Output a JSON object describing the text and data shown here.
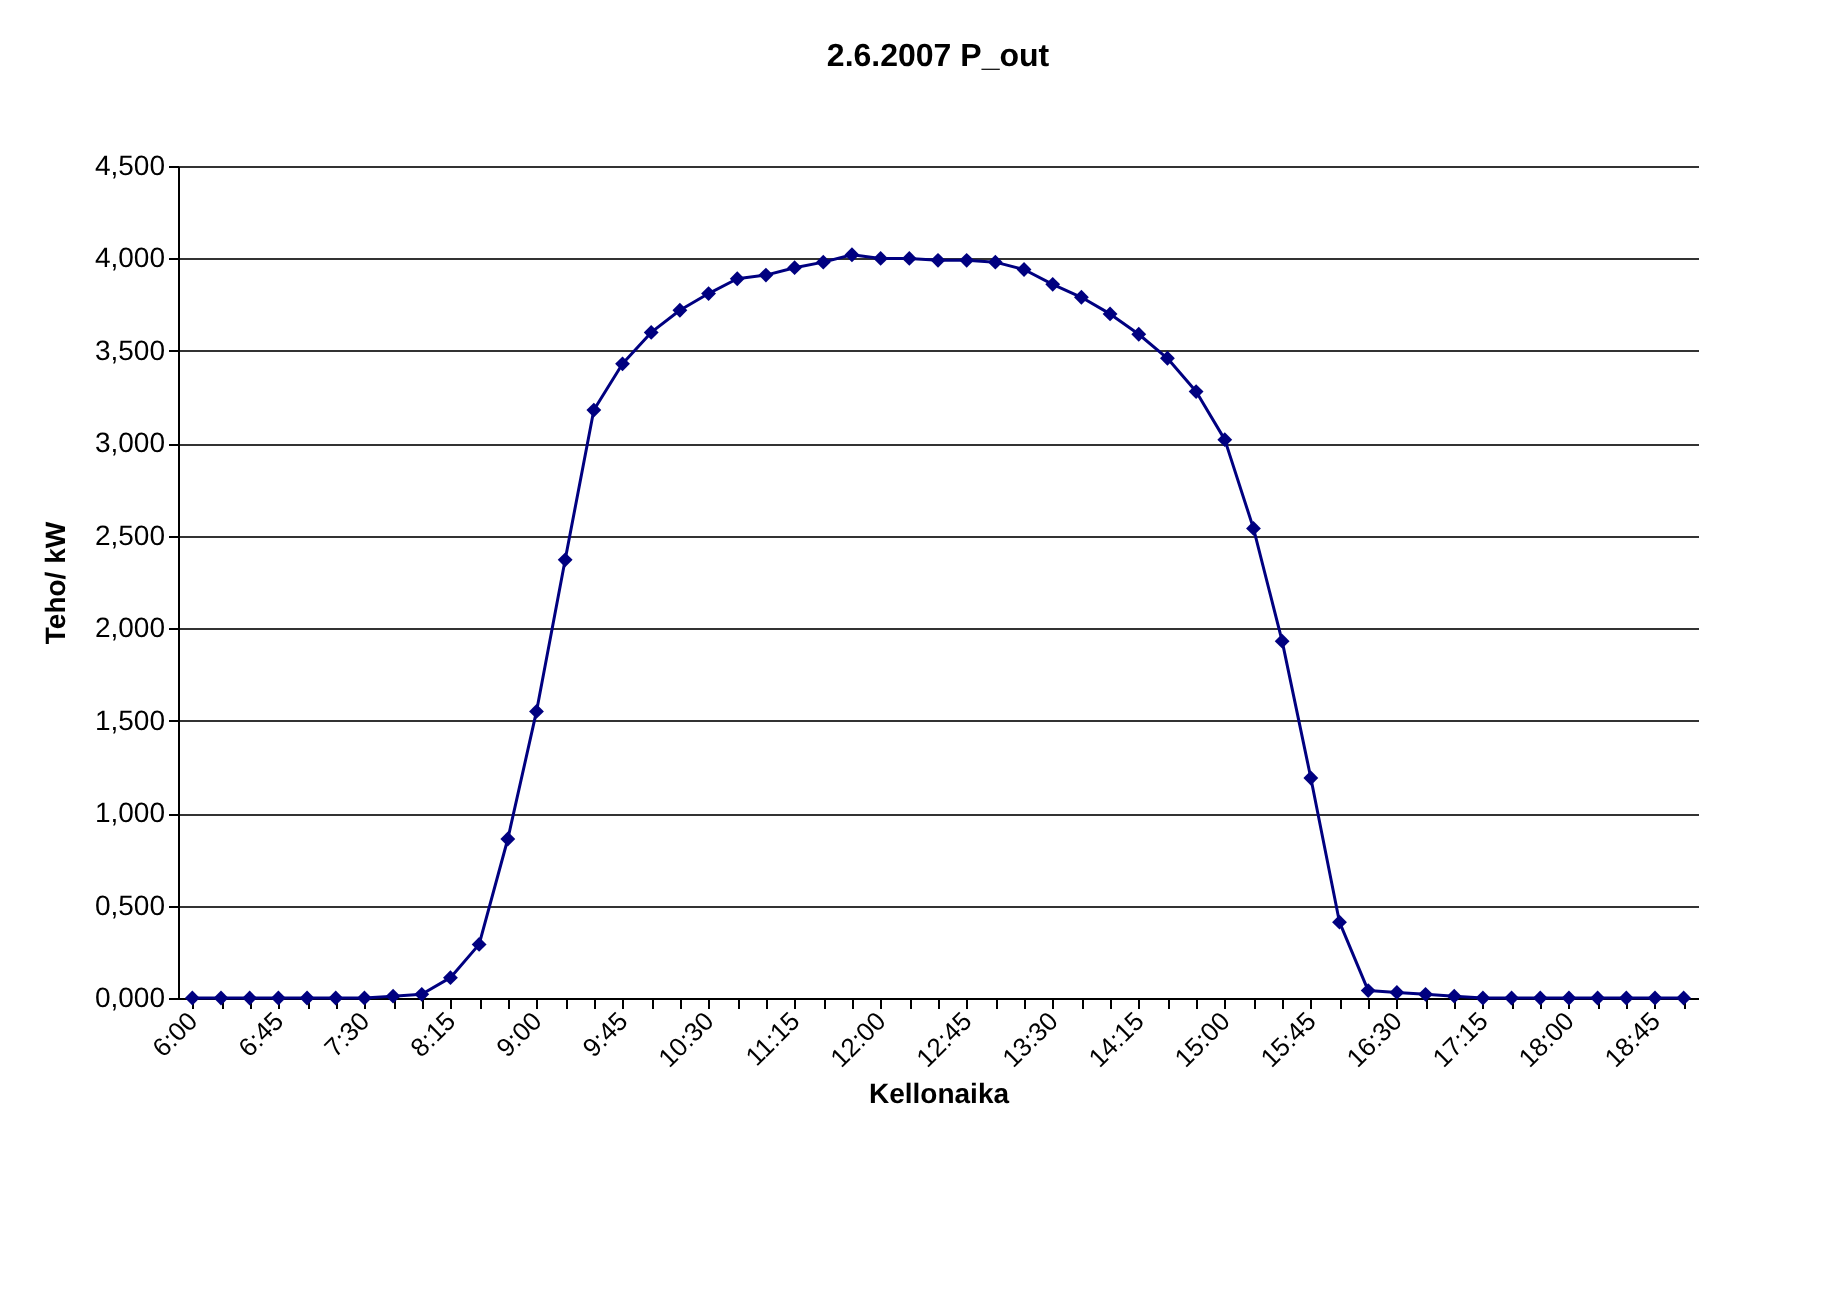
{
  "chart_data": {
    "type": "line",
    "title": "2.6.2007 P_out",
    "xlabel": "Kellonaika",
    "ylabel": "Teho/ kW",
    "categories": [
      "6:00",
      null,
      null,
      "6:45",
      null,
      null,
      "7:30",
      null,
      null,
      "8:15",
      null,
      null,
      "9:00",
      null,
      null,
      "9:45",
      null,
      null,
      "10:30",
      null,
      null,
      "11:15",
      null,
      null,
      "12:00",
      null,
      null,
      "12:45",
      null,
      null,
      "13:30",
      null,
      null,
      "14:15",
      null,
      null,
      "15:00",
      null,
      null,
      "15:45",
      null,
      null,
      "16:30",
      null,
      null,
      "17:15",
      null,
      null,
      "18:00",
      null,
      null,
      "18:45",
      null
    ],
    "series": [
      {
        "color": "#000080",
        "values": [
          0,
          0,
          0,
          0,
          0,
          0,
          0,
          0.01,
          0.02,
          0.11,
          0.29,
          0.86,
          1.55,
          2.37,
          3.18,
          3.43,
          3.6,
          3.72,
          3.81,
          3.89,
          3.91,
          3.95,
          3.98,
          4.02,
          4.0,
          4.0,
          3.99,
          3.99,
          3.98,
          3.94,
          3.86,
          3.79,
          3.7,
          3.59,
          3.46,
          3.28,
          3.02,
          2.54,
          1.93,
          1.19,
          0.41,
          0.04,
          0.03,
          0.02,
          0.01,
          0,
          0,
          0,
          0,
          0,
          0,
          0,
          0
        ]
      }
    ],
    "ylim": [
      0,
      4.5
    ],
    "yticks": [
      {
        "value": 0,
        "label": "0,000"
      },
      {
        "value": 0.5,
        "label": "0,500"
      },
      {
        "value": 1,
        "label": "1,000"
      },
      {
        "value": 1.5,
        "label": "1,500"
      },
      {
        "value": 2,
        "label": "2,000"
      },
      {
        "value": 2.5,
        "label": "2,500"
      },
      {
        "value": 3,
        "label": "3,000"
      },
      {
        "value": 3.5,
        "label": "3,500"
      },
      {
        "value": 4,
        "label": "4,000"
      },
      {
        "value": 4.5,
        "label": "4,500"
      }
    ],
    "grid": "y",
    "marker": "diamond"
  }
}
